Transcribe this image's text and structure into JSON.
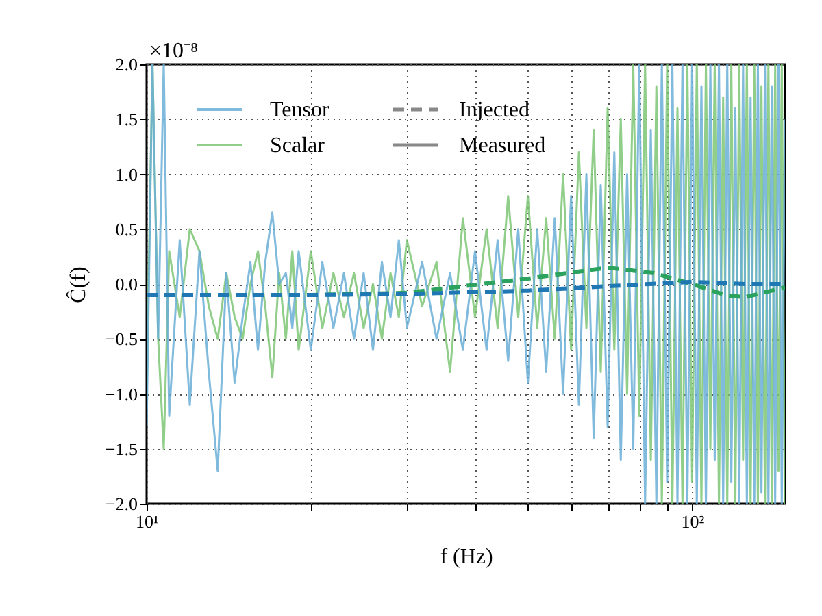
{
  "chart_data": {
    "type": "line",
    "xlabel": "f (Hz)",
    "ylabel": "Ĉ(f)",
    "log": "x",
    "grid": true,
    "legend": "top left",
    "xlim": [
      10,
      148
    ],
    "ylim": [
      -2.0,
      2.0
    ],
    "xticks": [
      {
        "value": 10,
        "label": "10¹"
      },
      {
        "value": 20,
        "label": null
      },
      {
        "value": 30,
        "label": null
      },
      {
        "value": 40,
        "label": null
      },
      {
        "value": 50,
        "label": null
      },
      {
        "value": 60,
        "label": null
      },
      {
        "value": 70,
        "label": null
      },
      {
        "value": 80,
        "label": null
      },
      {
        "value": 90,
        "label": null
      },
      {
        "value": 100,
        "label": "10²"
      }
    ],
    "yticks": [
      {
        "value": -2.0,
        "label": "−2.0"
      },
      {
        "value": -1.5,
        "label": "−1.5"
      },
      {
        "value": -1.0,
        "label": "−1.0"
      },
      {
        "value": -0.5,
        "label": "−0.5"
      },
      {
        "value": 0.0,
        "label": "0.0"
      },
      {
        "value": 0.5,
        "label": "0.5"
      },
      {
        "value": 1.0,
        "label": "1.0"
      },
      {
        "value": 1.5,
        "label": "1.5"
      },
      {
        "value": 2.0,
        "label": "2.0"
      }
    ],
    "annotations": [
      "×10⁻⁸",
      "Injected",
      "Measured"
    ],
    "series": [
      {
        "name": "Scalar",
        "color": "#7cc576",
        "line_style": "solid",
        "x": [
          10,
          10.25,
          10.5,
          10.75,
          11,
          11.5,
          12,
          12.5,
          13,
          13.5,
          14,
          14.5,
          15,
          15.5,
          16,
          16.5,
          17,
          17.5,
          18,
          18.5,
          19,
          20,
          21,
          22,
          23,
          24,
          25,
          26,
          27,
          28,
          29,
          30,
          32,
          34,
          36,
          38,
          40,
          42,
          44,
          46,
          48,
          50,
          52,
          54,
          56,
          58,
          60,
          62,
          64,
          66,
          68,
          70,
          72,
          74,
          76,
          78,
          80,
          82,
          84,
          86,
          88,
          90,
          92,
          94,
          96,
          98,
          100,
          102,
          104,
          106,
          108,
          110,
          112,
          114,
          116,
          118,
          120,
          122,
          124,
          126,
          128,
          130,
          132,
          134,
          136,
          138,
          140,
          142,
          144,
          146,
          148
        ],
        "values": [
          -1.0,
          2.0,
          -0.5,
          -1.5,
          0.3,
          -0.3,
          0.5,
          0.3,
          -0.2,
          -0.5,
          0.1,
          -0.3,
          -0.5,
          0.0,
          0.3,
          -0.2,
          -0.85,
          0.1,
          -0.5,
          0.3,
          -0.6,
          0.3,
          -0.4,
          0.1,
          -0.3,
          0.1,
          -0.4,
          0.0,
          -0.5,
          0.1,
          -0.3,
          0.4,
          -0.2,
          0.2,
          -0.8,
          0.6,
          -0.3,
          0.5,
          -0.4,
          0.8,
          -0.3,
          0.8,
          -0.4,
          0.6,
          -0.5,
          1.0,
          -0.6,
          1.2,
          -0.4,
          1.4,
          -0.8,
          1.6,
          -0.6,
          1.5,
          -1.0,
          2.0,
          -1.2,
          2.0,
          -1.6,
          1.8,
          -2.0,
          2.0,
          -2.0,
          1.6,
          -2.0,
          2.0,
          -1.8,
          2.0,
          -2.0,
          2.0,
          -1.5,
          2.0,
          -2.0,
          1.7,
          -2.0,
          2.0,
          -2.0,
          2.0,
          -1.6,
          2.0,
          -2.0,
          2.0,
          -2.0,
          1.8,
          -2.0,
          2.0,
          -2.0,
          2.0,
          -1.7,
          2.0,
          -2.0
        ]
      },
      {
        "name": "Tensor",
        "color": "#6aaed6",
        "line_style": "solid",
        "x": [
          10,
          10.25,
          10.5,
          10.75,
          11,
          11.5,
          12,
          12.5,
          13,
          13.5,
          14,
          14.5,
          15,
          15.5,
          16,
          16.5,
          17,
          17.5,
          18,
          18.5,
          19,
          20,
          21,
          22,
          23,
          24,
          25,
          26,
          27,
          28,
          29,
          30,
          32,
          34,
          36,
          38,
          40,
          42,
          44,
          46,
          48,
          50,
          52,
          54,
          56,
          58,
          60,
          62,
          64,
          66,
          68,
          70,
          72,
          74,
          76,
          78,
          80,
          82,
          84,
          86,
          88,
          90,
          92,
          94,
          96,
          98,
          100,
          102,
          104,
          106,
          108,
          110,
          112,
          114,
          116,
          118,
          120,
          122,
          124,
          126,
          128,
          130,
          132,
          134,
          136,
          138,
          140,
          142,
          144,
          146,
          148
        ],
        "values": [
          -1.3,
          2.0,
          -0.5,
          2.0,
          -1.2,
          0.4,
          -1.1,
          0.3,
          -0.8,
          -1.7,
          0.1,
          -0.9,
          -0.3,
          0.2,
          -0.6,
          0.2,
          0.65,
          0.0,
          0.1,
          -0.4,
          0.3,
          -0.6,
          0.2,
          -0.4,
          0.1,
          -0.5,
          0.1,
          -0.6,
          0.2,
          -0.3,
          0.4,
          -0.4,
          0.2,
          -0.5,
          0.1,
          -0.6,
          0.3,
          -0.6,
          0.4,
          -0.7,
          0.5,
          -0.9,
          0.5,
          -0.8,
          0.6,
          -1.0,
          0.8,
          -1.1,
          1.0,
          -1.4,
          0.9,
          -1.3,
          1.2,
          -1.6,
          1.0,
          -1.5,
          2.0,
          -2.0,
          1.4,
          -2.0,
          2.0,
          -1.8,
          2.0,
          -2.0,
          2.0,
          -2.0,
          2.0,
          -2.0,
          1.8,
          -2.0,
          2.0,
          -1.6,
          2.0,
          -2.0,
          2.0,
          -1.8,
          1.6,
          -2.0,
          2.0,
          -2.0,
          1.7,
          -2.0,
          2.0,
          -1.9,
          2.0,
          -2.0,
          1.8,
          -2.0,
          2.0,
          -2.0,
          1.5
        ]
      },
      {
        "color": "#2ca25f",
        "line_style": "dashed",
        "x": [
          10,
          20,
          30,
          50,
          70,
          85,
          100,
          115,
          125,
          148
        ],
        "values": [
          -0.1,
          -0.1,
          -0.08,
          0.05,
          0.15,
          0.1,
          0.0,
          -0.1,
          -0.12,
          -0.03
        ]
      },
      {
        "color": "#1f78b4",
        "line_style": "dashed",
        "x": [
          10,
          20,
          30,
          50,
          70,
          100,
          125,
          148
        ],
        "values": [
          -0.1,
          -0.1,
          -0.09,
          -0.06,
          -0.02,
          0.02,
          0.0,
          0.0
        ]
      }
    ]
  }
}
